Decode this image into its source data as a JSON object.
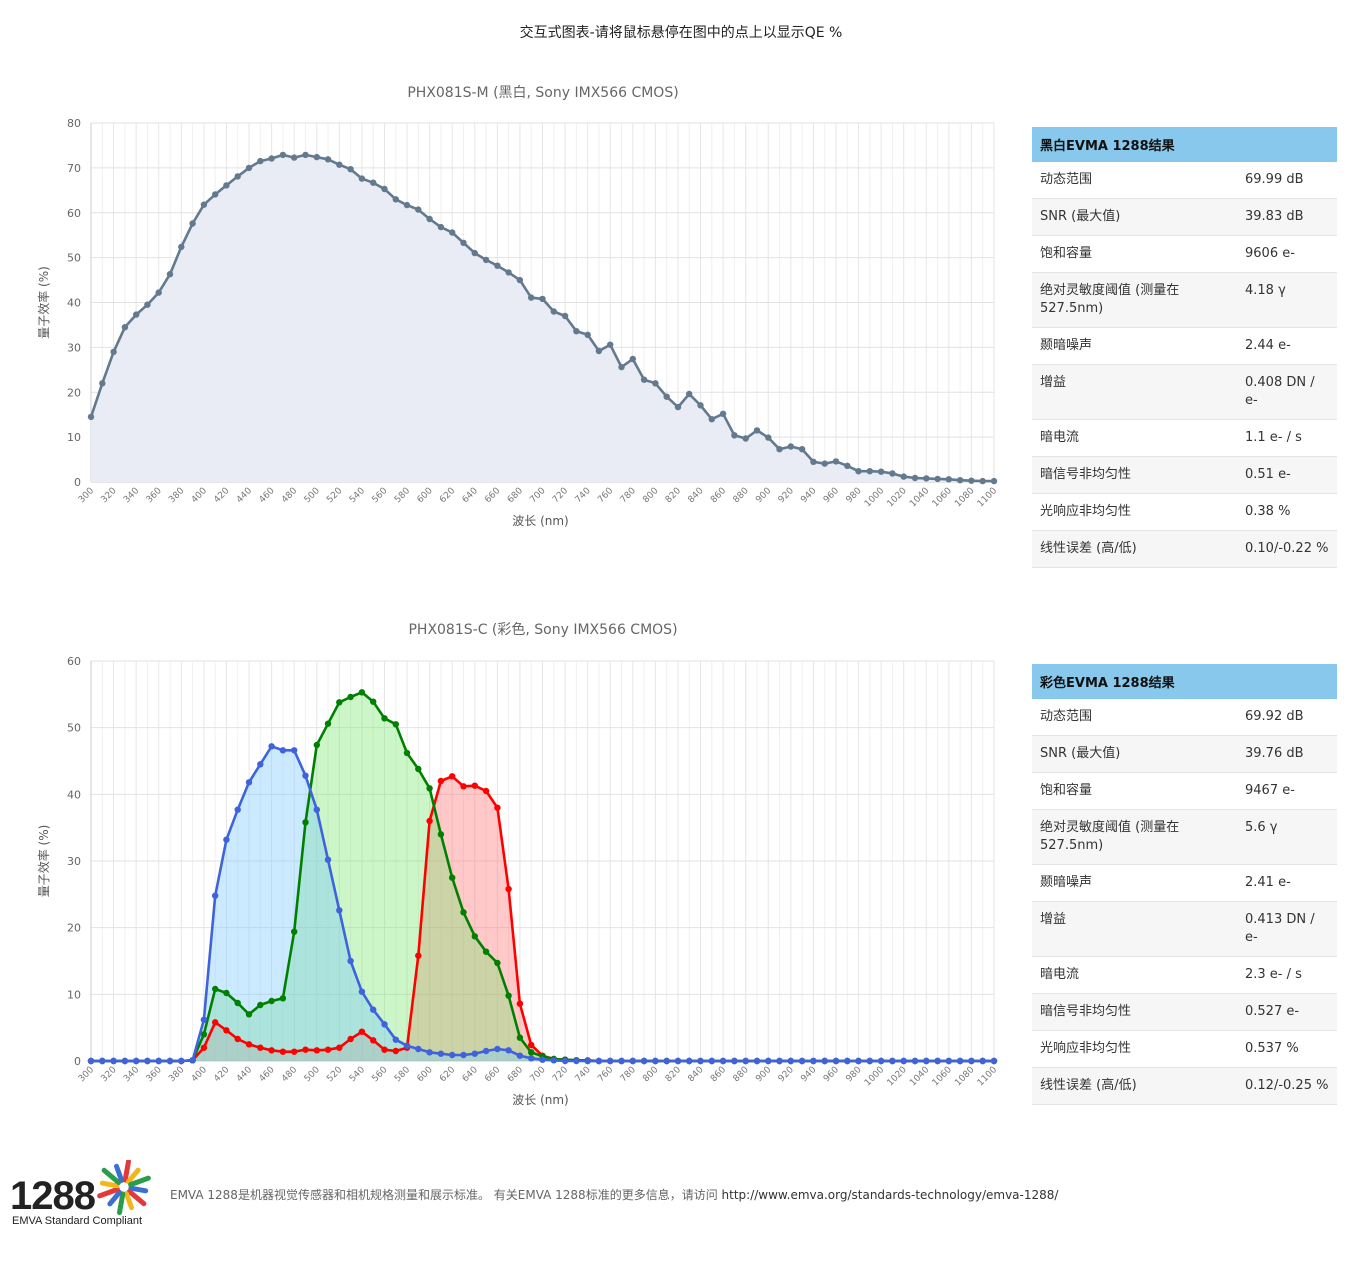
{
  "page_title": "交互式图表-请将鼠标悬停在图中的点上以显示QE %",
  "chart_data": [
    {
      "type": "area",
      "title": "PHX081S-M (黑白, Sony IMX566 CMOS)",
      "xlabel": "波长 (nm)",
      "ylabel": "量子效率 (%)",
      "xlim": [
        300,
        1100
      ],
      "ylim": [
        0,
        80
      ],
      "y_ticks": [
        0,
        10,
        20,
        30,
        40,
        50,
        60,
        70,
        80
      ],
      "x_ticks": [
        300,
        320,
        340,
        360,
        380,
        400,
        420,
        440,
        460,
        480,
        500,
        520,
        540,
        560,
        580,
        600,
        620,
        640,
        660,
        680,
        700,
        720,
        740,
        760,
        780,
        800,
        820,
        840,
        860,
        880,
        900,
        920,
        940,
        960,
        980,
        1000,
        1020,
        1040,
        1060,
        1080,
        1100
      ],
      "x_start": 300,
      "x_step": 10,
      "series": [
        {
          "name": "Mono",
          "color": "#637a8e",
          "fill": "#e9ecf4",
          "values": [
            14.5,
            22.0,
            29.0,
            34.5,
            37.3,
            39.5,
            42.2,
            46.3,
            52.4,
            57.6,
            61.8,
            64.1,
            66.1,
            68.1,
            70.0,
            71.5,
            72.1,
            72.9,
            72.3,
            72.9,
            72.4,
            71.9,
            70.7,
            69.7,
            67.6,
            66.7,
            65.3,
            63.0,
            61.7,
            60.7,
            58.6,
            56.8,
            55.6,
            53.3,
            51.0,
            49.5,
            48.2,
            46.7,
            45.0,
            41.1,
            40.8,
            38.0,
            37.0,
            33.6,
            32.8,
            29.2,
            30.6,
            25.6,
            27.4,
            22.8,
            22.0,
            19.0,
            16.7,
            19.6,
            17.1,
            14.0,
            15.2,
            10.4,
            9.7,
            11.5,
            9.9,
            7.3,
            7.9,
            7.3,
            4.5,
            4.1,
            4.6,
            3.6,
            2.4,
            2.4,
            2.3,
            1.9,
            1.2,
            0.9,
            0.8,
            0.7,
            0.6,
            0.4,
            0.3,
            0.2,
            0.2
          ]
        }
      ]
    },
    {
      "type": "area",
      "title": "PHX081S-C (彩色, Sony IMX566 CMOS)",
      "xlabel": "波长 (nm)",
      "ylabel": "量子效率 (%)",
      "xlim": [
        300,
        1100
      ],
      "ylim": [
        0,
        60
      ],
      "y_ticks": [
        0,
        10,
        20,
        30,
        40,
        50,
        60
      ],
      "x_ticks": [
        300,
        320,
        340,
        360,
        380,
        400,
        420,
        440,
        460,
        480,
        500,
        520,
        540,
        560,
        580,
        600,
        620,
        640,
        660,
        680,
        700,
        720,
        740,
        760,
        780,
        800,
        820,
        840,
        860,
        880,
        900,
        920,
        940,
        960,
        980,
        1000,
        1020,
        1040,
        1060,
        1080,
        1100
      ],
      "x_start": 300,
      "x_step": 10,
      "series": [
        {
          "name": "Red",
          "color": "#ff0000",
          "fill": "rgba(255,120,120,0.40)",
          "values": [
            0,
            0,
            0,
            0,
            0,
            0,
            0,
            0,
            0,
            0.1,
            2.0,
            5.8,
            4.6,
            3.3,
            2.5,
            2.0,
            1.6,
            1.4,
            1.4,
            1.7,
            1.6,
            1.7,
            2.0,
            3.3,
            4.4,
            3.1,
            1.7,
            1.5,
            2.0,
            15.8,
            36.0,
            42.0,
            42.7,
            41.2,
            41.3,
            40.5,
            38.0,
            25.8,
            8.6,
            2.4,
            0.8,
            0.3,
            0.2,
            0.1,
            0.1,
            0,
            0,
            0,
            0,
            0,
            0,
            0,
            0,
            0,
            0,
            0,
            0,
            0,
            0,
            0,
            0,
            0,
            0,
            0,
            0,
            0,
            0,
            0,
            0,
            0,
            0,
            0,
            0,
            0,
            0,
            0,
            0,
            0,
            0,
            0,
            0
          ]
        },
        {
          "name": "Green",
          "color": "#008000",
          "fill": "rgba(120,230,110,0.38)",
          "values": [
            0,
            0,
            0,
            0,
            0,
            0,
            0,
            0,
            0,
            0.1,
            4.0,
            10.8,
            10.2,
            8.7,
            7.0,
            8.4,
            9.0,
            9.4,
            19.4,
            35.8,
            47.4,
            50.6,
            53.8,
            54.6,
            55.3,
            53.9,
            51.4,
            50.5,
            46.2,
            43.8,
            40.9,
            34.0,
            27.5,
            22.3,
            18.7,
            16.4,
            14.7,
            9.8,
            3.5,
            1.3,
            0.7,
            0.3,
            0.2,
            0.1,
            0,
            0,
            0,
            0,
            0,
            0,
            0,
            0,
            0,
            0,
            0,
            0,
            0,
            0,
            0,
            0,
            0,
            0,
            0,
            0,
            0,
            0,
            0,
            0,
            0,
            0,
            0,
            0,
            0,
            0,
            0,
            0,
            0,
            0,
            0,
            0,
            0
          ]
        },
        {
          "name": "Blue",
          "color": "#3e63dd",
          "fill": "rgba(120,200,255,0.38)",
          "values": [
            0,
            0,
            0,
            0,
            0,
            0,
            0,
            0,
            0,
            0.1,
            6.2,
            24.8,
            33.2,
            37.7,
            41.8,
            44.5,
            47.2,
            46.6,
            46.6,
            42.8,
            37.7,
            30.2,
            22.6,
            15.0,
            10.4,
            7.7,
            5.5,
            3.2,
            2.3,
            1.8,
            1.3,
            1.1,
            0.9,
            0.9,
            1.1,
            1.5,
            1.8,
            1.6,
            0.8,
            0.4,
            0.2,
            0.1,
            0,
            0,
            0,
            0,
            0,
            0,
            0,
            0,
            0,
            0,
            0,
            0,
            0,
            0,
            0,
            0,
            0,
            0,
            0,
            0,
            0,
            0,
            0,
            0,
            0,
            0,
            0,
            0,
            0,
            0,
            0,
            0,
            0,
            0,
            0,
            0,
            0,
            0,
            0
          ]
        }
      ]
    }
  ],
  "mono_table": {
    "header": "黑白EVMA 1288结果",
    "rows": [
      {
        "label": "动态范围",
        "value": "69.99 dB"
      },
      {
        "label": "SNR (最大值)",
        "value": "39.83 dB"
      },
      {
        "label": "饱和容量",
        "value": "9606 e-"
      },
      {
        "label": "绝对灵敏度阈值 (测量在527.5nm)",
        "value": "4.18 γ"
      },
      {
        "label": "颞暗噪声",
        "value": "2.44 e-"
      },
      {
        "label": "增益",
        "value": "0.408 DN / e-"
      },
      {
        "label": "暗电流",
        "value": "1.1 e- / s"
      },
      {
        "label": "暗信号非均匀性",
        "value": "0.51 e-"
      },
      {
        "label": "光响应非均匀性",
        "value": "0.38 %"
      },
      {
        "label": "线性误差 (高/低)",
        "value": "0.10/-0.22 %"
      }
    ]
  },
  "color_table": {
    "header": "彩色EVMA 1288结果",
    "rows": [
      {
        "label": "动态范围",
        "value": "69.92 dB"
      },
      {
        "label": "SNR (最大值)",
        "value": "39.76 dB"
      },
      {
        "label": "饱和容量",
        "value": "9467 e-"
      },
      {
        "label": "绝对灵敏度阈值 (测量在527.5nm)",
        "value": "5.6 γ"
      },
      {
        "label": "颞暗噪声",
        "value": "2.41 e-"
      },
      {
        "label": "增益",
        "value": "0.413 DN / e-"
      },
      {
        "label": "暗电流",
        "value": "2.3 e- / s"
      },
      {
        "label": "暗信号非均匀性",
        "value": "0.527 e-"
      },
      {
        "label": "光响应非均匀性",
        "value": "0.537 %"
      },
      {
        "label": "线性误差 (高/低)",
        "value": "0.12/-0.25 %"
      }
    ]
  },
  "footer": {
    "logo_number": "1288",
    "logo_caption": "EMVA Standard Compliant",
    "text": "EMVA 1288是机器视觉传感器和相机规格测量和展示标准。 有关EMVA 1288标准的更多信息，请访问",
    "link": "http://www.emva.org/standards-technology/emva-1288/",
    "star_colors": [
      "#3b6fd0",
      "#e23a3a",
      "#f2b81b",
      "#2a9d4a"
    ]
  }
}
